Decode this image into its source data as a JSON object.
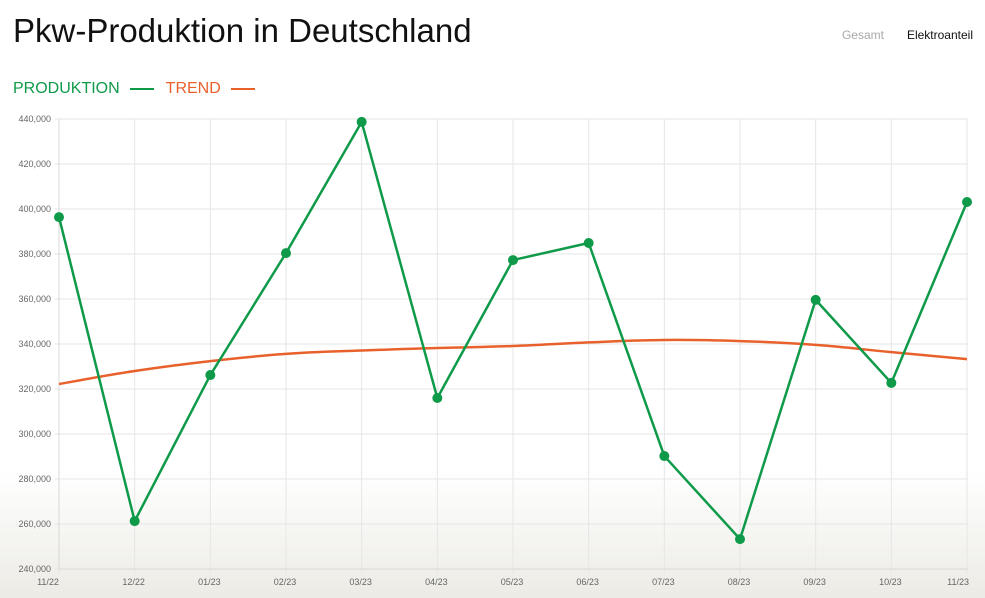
{
  "header": {
    "title": "Pkw-Produktion in Deutschland",
    "tabs": [
      {
        "label": "Gesamt",
        "active": false
      },
      {
        "label": "Elektroanteil",
        "active": true
      }
    ]
  },
  "colors": {
    "produktion": "#0f9a4a",
    "trend": "#e8612c",
    "grid": "#e6e6e6"
  },
  "chart_data": {
    "type": "line",
    "title": "Pkw-Produktion in Deutschland",
    "xlabel": "",
    "ylabel": "",
    "categories": [
      "11/22",
      "12/22",
      "01/23",
      "02/23",
      "03/23",
      "04/23",
      "05/23",
      "06/23",
      "07/23",
      "08/23",
      "09/23",
      "10/23",
      "11/23"
    ],
    "ylim": [
      240000,
      440000
    ],
    "yticks": [
      440000,
      420000,
      400000,
      380000,
      360000,
      340000,
      320000,
      300000,
      280000,
      260000,
      240000
    ],
    "ytick_labels": [
      "440,000",
      "420,000",
      "400,000",
      "380,000",
      "360,000",
      "340,000",
      "320,000",
      "300,000",
      "280,000",
      "260,000",
      "240,000"
    ],
    "grid": true,
    "legend_position": "top-left",
    "series": [
      {
        "name": "PRODUKTION",
        "color": "#0f9a4a",
        "markers": true,
        "values": [
          396400,
          261300,
          326200,
          380400,
          438700,
          316000,
          377300,
          384900,
          290200,
          253300,
          359600,
          322700,
          403100
        ]
      },
      {
        "name": "TREND",
        "color": "#e8612c",
        "markers": false,
        "values": [
          322200,
          328000,
          332400,
          335600,
          337100,
          338200,
          339100,
          340700,
          341800,
          341300,
          339600,
          336400,
          333300
        ]
      }
    ]
  }
}
